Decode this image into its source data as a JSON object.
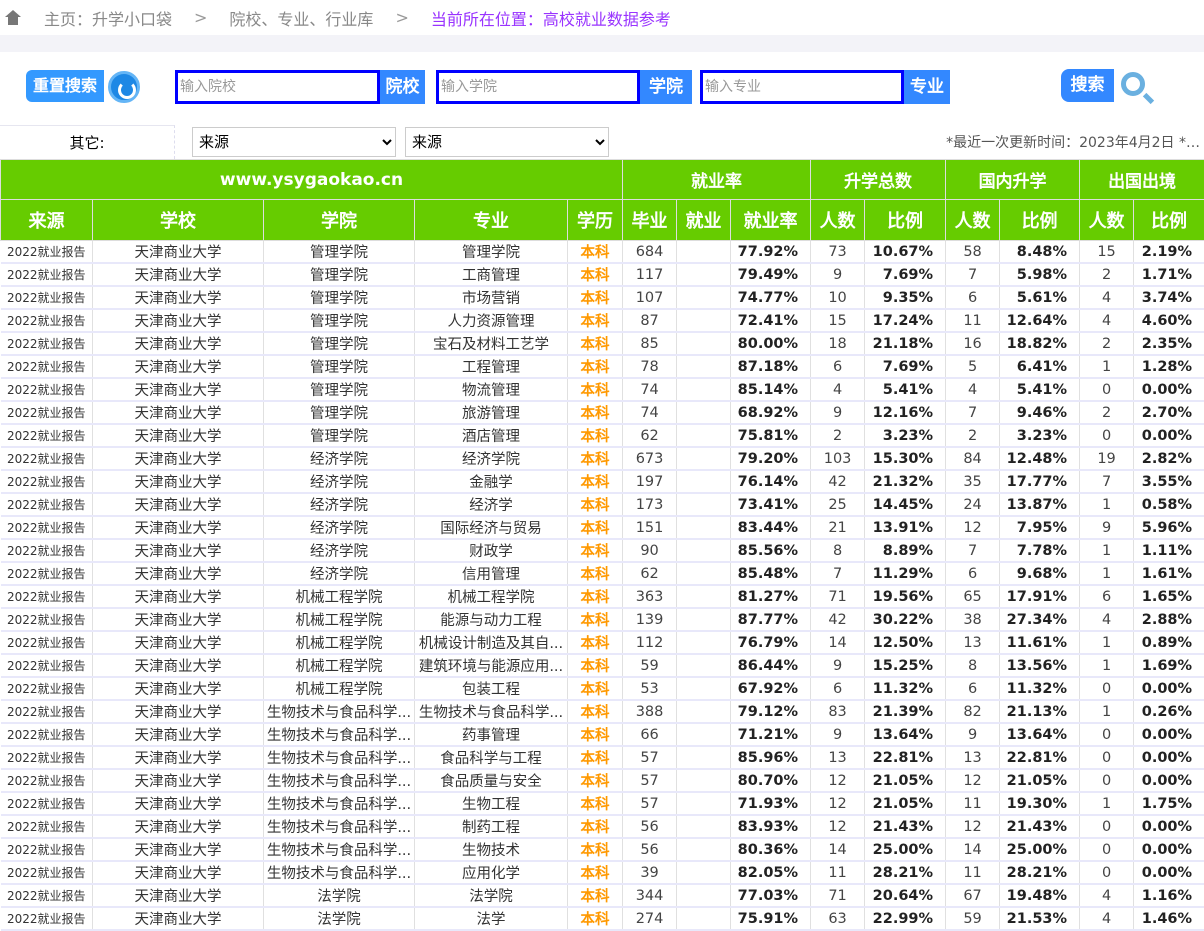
{
  "breadcrumb": {
    "home": "主页：升学小口袋",
    "sep": ">",
    "library": "院校、专业、行业库",
    "current": "当前所在位置：高校就业数据参考"
  },
  "search": {
    "reset_label": "重置搜索",
    "school_placeholder": "输入院校",
    "school_tag": "院校",
    "college_placeholder": "输入学院",
    "college_tag": "学院",
    "major_placeholder": "输入专业",
    "major_tag": "专业",
    "search_label": "搜索"
  },
  "filters": {
    "other_label": "其它:",
    "select1": "来源",
    "select2": "来源",
    "update_text": "*最近一次更新时间：2023年4月2日 *…"
  },
  "table": {
    "site": "www.ysygaokao.cn",
    "groups": [
      "就业率",
      "升学总数",
      "国内升学",
      "出国出境"
    ],
    "columns": [
      "来源",
      "学校",
      "学院",
      "专业",
      "学历",
      "毕业",
      "就业",
      "就业率",
      "人数",
      "比例",
      "人数",
      "比例",
      "人数",
      "比例"
    ],
    "rows": [
      [
        "2022就业报告",
        "天津商业大学",
        "管理学院",
        "管理学院",
        "本科",
        "684",
        "",
        "77.92%",
        "73",
        "10.67%",
        "58",
        "8.48%",
        "15",
        "2.19%"
      ],
      [
        "2022就业报告",
        "天津商业大学",
        "管理学院",
        "工商管理",
        "本科",
        "117",
        "",
        "79.49%",
        "9",
        "7.69%",
        "7",
        "5.98%",
        "2",
        "1.71%"
      ],
      [
        "2022就业报告",
        "天津商业大学",
        "管理学院",
        "市场营销",
        "本科",
        "107",
        "",
        "74.77%",
        "10",
        "9.35%",
        "6",
        "5.61%",
        "4",
        "3.74%"
      ],
      [
        "2022就业报告",
        "天津商业大学",
        "管理学院",
        "人力资源管理",
        "本科",
        "87",
        "",
        "72.41%",
        "15",
        "17.24%",
        "11",
        "12.64%",
        "4",
        "4.60%"
      ],
      [
        "2022就业报告",
        "天津商业大学",
        "管理学院",
        "宝石及材料工艺学",
        "本科",
        "85",
        "",
        "80.00%",
        "18",
        "21.18%",
        "16",
        "18.82%",
        "2",
        "2.35%"
      ],
      [
        "2022就业报告",
        "天津商业大学",
        "管理学院",
        "工程管理",
        "本科",
        "78",
        "",
        "87.18%",
        "6",
        "7.69%",
        "5",
        "6.41%",
        "1",
        "1.28%"
      ],
      [
        "2022就业报告",
        "天津商业大学",
        "管理学院",
        "物流管理",
        "本科",
        "74",
        "",
        "85.14%",
        "4",
        "5.41%",
        "4",
        "5.41%",
        "0",
        "0.00%"
      ],
      [
        "2022就业报告",
        "天津商业大学",
        "管理学院",
        "旅游管理",
        "本科",
        "74",
        "",
        "68.92%",
        "9",
        "12.16%",
        "7",
        "9.46%",
        "2",
        "2.70%"
      ],
      [
        "2022就业报告",
        "天津商业大学",
        "管理学院",
        "酒店管理",
        "本科",
        "62",
        "",
        "75.81%",
        "2",
        "3.23%",
        "2",
        "3.23%",
        "0",
        "0.00%"
      ],
      [
        "2022就业报告",
        "天津商业大学",
        "经济学院",
        "经济学院",
        "本科",
        "673",
        "",
        "79.20%",
        "103",
        "15.30%",
        "84",
        "12.48%",
        "19",
        "2.82%"
      ],
      [
        "2022就业报告",
        "天津商业大学",
        "经济学院",
        "金融学",
        "本科",
        "197",
        "",
        "76.14%",
        "42",
        "21.32%",
        "35",
        "17.77%",
        "7",
        "3.55%"
      ],
      [
        "2022就业报告",
        "天津商业大学",
        "经济学院",
        "经济学",
        "本科",
        "173",
        "",
        "73.41%",
        "25",
        "14.45%",
        "24",
        "13.87%",
        "1",
        "0.58%"
      ],
      [
        "2022就业报告",
        "天津商业大学",
        "经济学院",
        "国际经济与贸易",
        "本科",
        "151",
        "",
        "83.44%",
        "21",
        "13.91%",
        "12",
        "7.95%",
        "9",
        "5.96%"
      ],
      [
        "2022就业报告",
        "天津商业大学",
        "经济学院",
        "财政学",
        "本科",
        "90",
        "",
        "85.56%",
        "8",
        "8.89%",
        "7",
        "7.78%",
        "1",
        "1.11%"
      ],
      [
        "2022就业报告",
        "天津商业大学",
        "经济学院",
        "信用管理",
        "本科",
        "62",
        "",
        "85.48%",
        "7",
        "11.29%",
        "6",
        "9.68%",
        "1",
        "1.61%"
      ],
      [
        "2022就业报告",
        "天津商业大学",
        "机械工程学院",
        "机械工程学院",
        "本科",
        "363",
        "",
        "81.27%",
        "71",
        "19.56%",
        "65",
        "17.91%",
        "6",
        "1.65%"
      ],
      [
        "2022就业报告",
        "天津商业大学",
        "机械工程学院",
        "能源与动力工程",
        "本科",
        "139",
        "",
        "87.77%",
        "42",
        "30.22%",
        "38",
        "27.34%",
        "4",
        "2.88%"
      ],
      [
        "2022就业报告",
        "天津商业大学",
        "机械工程学院",
        "机械设计制造及其自...",
        "本科",
        "112",
        "",
        "76.79%",
        "14",
        "12.50%",
        "13",
        "11.61%",
        "1",
        "0.89%"
      ],
      [
        "2022就业报告",
        "天津商业大学",
        "机械工程学院",
        "建筑环境与能源应用...",
        "本科",
        "59",
        "",
        "86.44%",
        "9",
        "15.25%",
        "8",
        "13.56%",
        "1",
        "1.69%"
      ],
      [
        "2022就业报告",
        "天津商业大学",
        "机械工程学院",
        "包装工程",
        "本科",
        "53",
        "",
        "67.92%",
        "6",
        "11.32%",
        "6",
        "11.32%",
        "0",
        "0.00%"
      ],
      [
        "2022就业报告",
        "天津商业大学",
        "生物技术与食品科学...",
        "生物技术与食品科学...",
        "本科",
        "388",
        "",
        "79.12%",
        "83",
        "21.39%",
        "82",
        "21.13%",
        "1",
        "0.26%"
      ],
      [
        "2022就业报告",
        "天津商业大学",
        "生物技术与食品科学...",
        "药事管理",
        "本科",
        "66",
        "",
        "71.21%",
        "9",
        "13.64%",
        "9",
        "13.64%",
        "0",
        "0.00%"
      ],
      [
        "2022就业报告",
        "天津商业大学",
        "生物技术与食品科学...",
        "食品科学与工程",
        "本科",
        "57",
        "",
        "85.96%",
        "13",
        "22.81%",
        "13",
        "22.81%",
        "0",
        "0.00%"
      ],
      [
        "2022就业报告",
        "天津商业大学",
        "生物技术与食品科学...",
        "食品质量与安全",
        "本科",
        "57",
        "",
        "80.70%",
        "12",
        "21.05%",
        "12",
        "21.05%",
        "0",
        "0.00%"
      ],
      [
        "2022就业报告",
        "天津商业大学",
        "生物技术与食品科学...",
        "生物工程",
        "本科",
        "57",
        "",
        "71.93%",
        "12",
        "21.05%",
        "11",
        "19.30%",
        "1",
        "1.75%"
      ],
      [
        "2022就业报告",
        "天津商业大学",
        "生物技术与食品科学...",
        "制药工程",
        "本科",
        "56",
        "",
        "83.93%",
        "12",
        "21.43%",
        "12",
        "21.43%",
        "0",
        "0.00%"
      ],
      [
        "2022就业报告",
        "天津商业大学",
        "生物技术与食品科学...",
        "生物技术",
        "本科",
        "56",
        "",
        "80.36%",
        "14",
        "25.00%",
        "14",
        "25.00%",
        "0",
        "0.00%"
      ],
      [
        "2022就业报告",
        "天津商业大学",
        "生物技术与食品科学...",
        "应用化学",
        "本科",
        "39",
        "",
        "82.05%",
        "11",
        "28.21%",
        "11",
        "28.21%",
        "0",
        "0.00%"
      ],
      [
        "2022就业报告",
        "天津商业大学",
        "法学院",
        "法学院",
        "本科",
        "344",
        "",
        "77.03%",
        "71",
        "20.64%",
        "67",
        "19.48%",
        "4",
        "1.16%"
      ],
      [
        "2022就业报告",
        "天津商业大学",
        "法学院",
        "法学",
        "本科",
        "274",
        "",
        "75.91%",
        "63",
        "22.99%",
        "59",
        "21.53%",
        "4",
        "1.46%"
      ]
    ]
  },
  "colors": {
    "header_green": "#66cc00",
    "accent_blue": "#3388ff",
    "degree_orange": "#ff9900",
    "current_purple": "#9933ff"
  }
}
